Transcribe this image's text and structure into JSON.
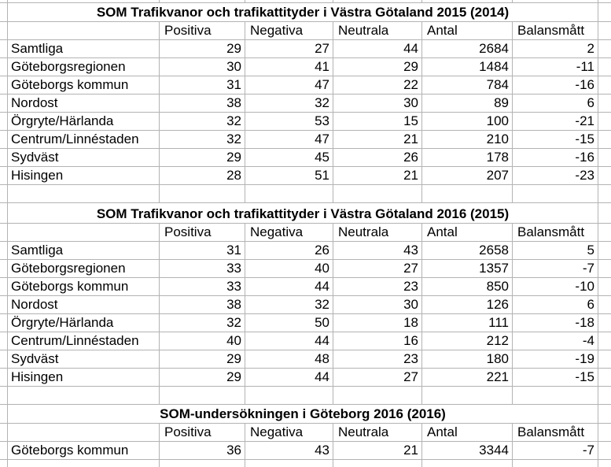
{
  "colors": {
    "background": "#ffffff",
    "gridline": "#b3b3b3",
    "text": "#000000"
  },
  "sections": [
    {
      "title": "SOM Trafikvanor och trafikattityder i Västra Götaland 2015 (2014)",
      "headers": [
        "Positiva",
        "Negativa",
        "Neutrala",
        "Antal",
        "Balansmått"
      ],
      "rows": [
        {
          "label": "Samtliga",
          "values": [
            29,
            27,
            44,
            2684,
            2
          ]
        },
        {
          "label": "Göteborgsregionen",
          "values": [
            30,
            41,
            29,
            1484,
            -11
          ]
        },
        {
          "label": "Göteborgs kommun",
          "values": [
            31,
            47,
            22,
            784,
            -16
          ]
        },
        {
          "label": "Nordost",
          "values": [
            38,
            32,
            30,
            89,
            6
          ]
        },
        {
          "label": "Örgryte/Härlanda",
          "values": [
            32,
            53,
            15,
            100,
            -21
          ]
        },
        {
          "label": "Centrum/Linnéstaden",
          "values": [
            32,
            47,
            21,
            210,
            -15
          ]
        },
        {
          "label": "Sydväst",
          "values": [
            29,
            45,
            26,
            178,
            -16
          ]
        },
        {
          "label": "Hisingen",
          "values": [
            28,
            51,
            21,
            207,
            -23
          ]
        }
      ]
    },
    {
      "title": "SOM Trafikvanor och trafikattityder i Västra Götaland 2016 (2015)",
      "headers": [
        "Positiva",
        "Negativa",
        "Neutrala",
        "Antal",
        "Balansmått"
      ],
      "rows": [
        {
          "label": "Samtliga",
          "values": [
            31,
            26,
            43,
            2658,
            5
          ]
        },
        {
          "label": "Göteborgsregionen",
          "values": [
            33,
            40,
            27,
            1357,
            -7
          ]
        },
        {
          "label": "Göteborgs kommun",
          "values": [
            33,
            44,
            23,
            850,
            -10
          ]
        },
        {
          "label": "Nordost",
          "values": [
            38,
            32,
            30,
            126,
            6
          ]
        },
        {
          "label": "Örgryte/Härlanda",
          "values": [
            32,
            50,
            18,
            111,
            -18
          ]
        },
        {
          "label": "Centrum/Linnéstaden",
          "values": [
            40,
            44,
            16,
            212,
            -4
          ]
        },
        {
          "label": "Sydväst",
          "values": [
            29,
            48,
            23,
            180,
            -19
          ]
        },
        {
          "label": "Hisingen",
          "values": [
            29,
            44,
            27,
            221,
            -15
          ]
        }
      ]
    },
    {
      "title": "SOM-undersökningen i Göteborg 2016 (2016)",
      "headers": [
        "Positiva",
        "Negativa",
        "Neutrala",
        "Antal",
        "Balansmått"
      ],
      "rows": [
        {
          "label": "Göteborgs kommun",
          "values": [
            36,
            43,
            21,
            3344,
            -7
          ]
        }
      ]
    }
  ]
}
